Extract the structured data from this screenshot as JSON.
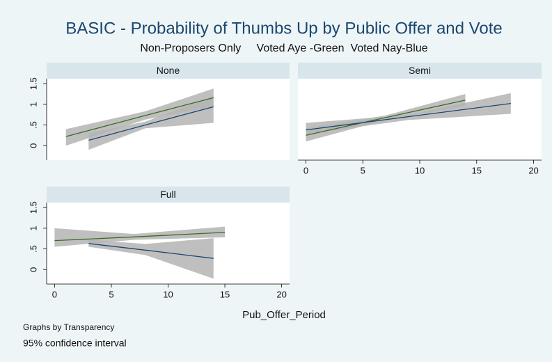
{
  "title": "BASIC - Probability of Thumbs Up by Public Offer and Vote",
  "subtitle": "Non-Proposers Only     Voted Aye -Green  Voted Nay-Blue",
  "xlabel": "Pub_Offer_Period",
  "note_1": "Graphs by Transparency",
  "note_2": "95% confidence interval",
  "chart_data": [
    {
      "type": "line",
      "title": "None",
      "xlim": [
        -0.7,
        20.7
      ],
      "ylim": [
        -0.35,
        1.62
      ],
      "yticks": [
        0,
        {
          "value": 0.5,
          "label": ".5"
        },
        1,
        1.5
      ],
      "series": [
        {
          "color": "#3d6b21",
          "x": [
            1,
            8,
            14
          ],
          "values": [
            0.22,
            0.73,
            1.16
          ],
          "lower": [
            0.0,
            0.63,
            0.95
          ],
          "upper": [
            0.4,
            0.83,
            1.38
          ]
        },
        {
          "color": "#1a476f",
          "x": [
            3,
            8,
            14
          ],
          "values": [
            0.13,
            0.5,
            0.94
          ],
          "lower": [
            -0.1,
            0.42,
            0.55
          ],
          "upper": [
            0.3,
            0.58,
            1.2
          ]
        }
      ]
    },
    {
      "type": "line",
      "title": "Semi",
      "xlim": [
        -0.7,
        20.7
      ],
      "ylim": [
        -0.35,
        1.62
      ],
      "xticks": [
        0,
        5,
        10,
        15,
        20
      ],
      "series": [
        {
          "color": "#3d6b21",
          "x": [
            0,
            7,
            14
          ],
          "values": [
            0.25,
            0.68,
            1.1
          ],
          "lower": [
            0.1,
            0.62,
            0.95
          ],
          "upper": [
            0.42,
            0.73,
            1.25
          ]
        },
        {
          "color": "#1a476f",
          "x": [
            0,
            9,
            18
          ],
          "values": [
            0.38,
            0.7,
            1.02
          ],
          "lower": [
            0.28,
            0.62,
            0.77
          ],
          "upper": [
            0.55,
            0.74,
            1.27
          ]
        }
      ]
    },
    {
      "type": "line",
      "title": "Full",
      "xlim": [
        -0.7,
        20.7
      ],
      "ylim": [
        -0.35,
        1.62
      ],
      "xticks": [
        0,
        5,
        10,
        15,
        20
      ],
      "yticks": [
        0,
        {
          "value": 0.5,
          "label": ".5"
        },
        1,
        1.5
      ],
      "series": [
        {
          "color": "#3d6b21",
          "x": [
            0,
            7,
            15
          ],
          "values": [
            0.7,
            0.79,
            0.9
          ],
          "lower": [
            0.55,
            0.72,
            0.78
          ],
          "upper": [
            1.0,
            0.86,
            1.04
          ]
        },
        {
          "color": "#1a476f",
          "x": [
            3,
            8,
            14
          ],
          "values": [
            0.63,
            0.47,
            0.27
          ],
          "lower": [
            0.55,
            0.35,
            -0.22
          ],
          "upper": [
            0.72,
            0.62,
            0.76
          ]
        }
      ]
    }
  ]
}
